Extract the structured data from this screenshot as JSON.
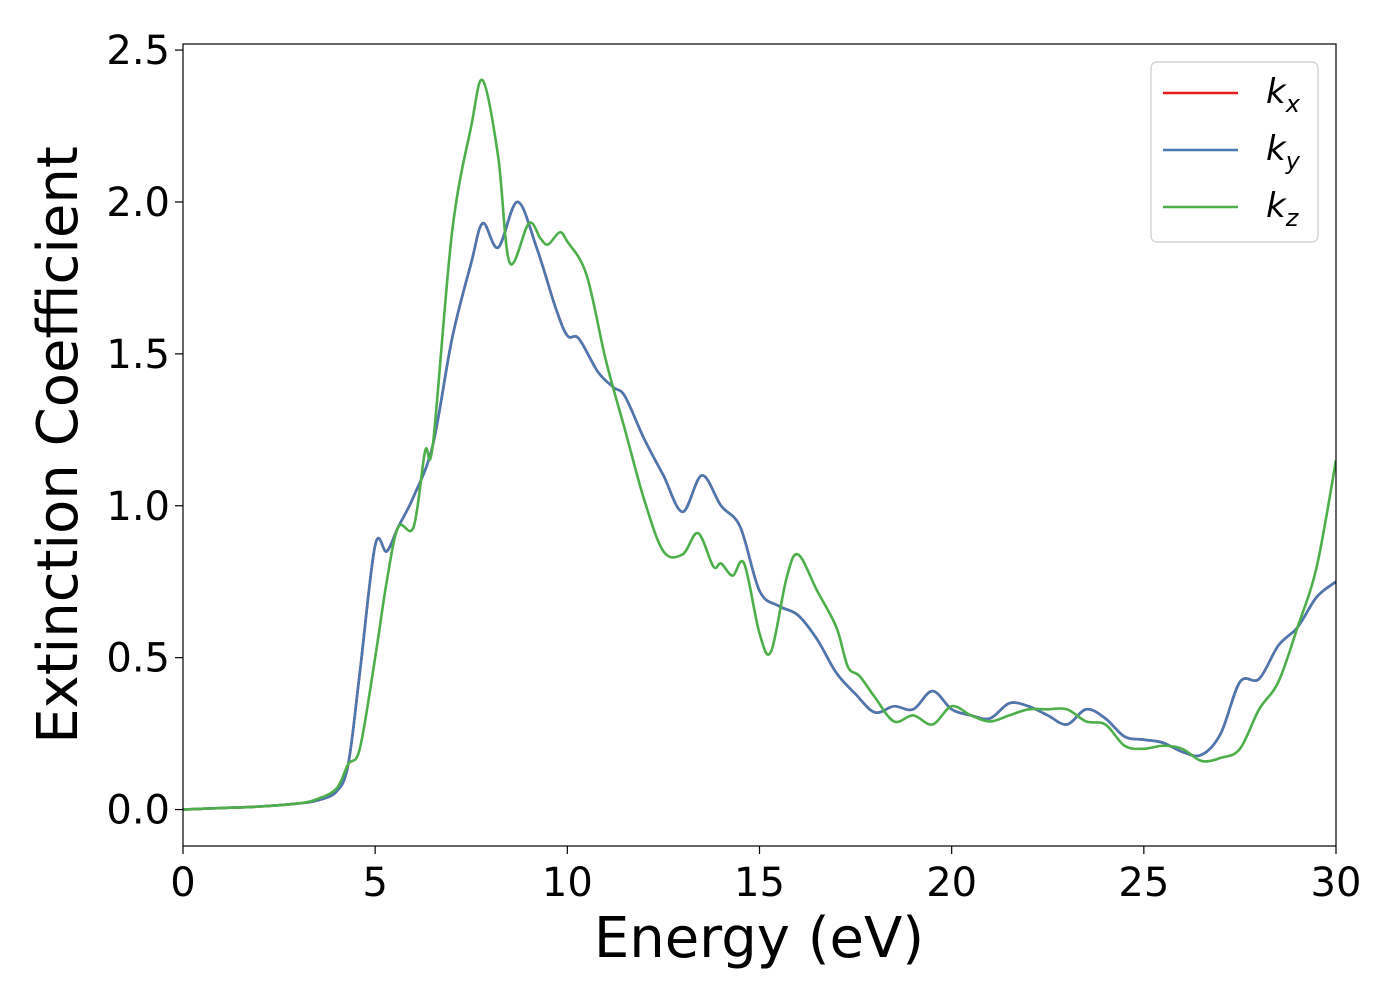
{
  "chart_data": {
    "type": "line",
    "xlabel": "Energy (eV)",
    "ylabel": "Extinction Coefficient",
    "xlim": [
      0,
      30
    ],
    "ylim": [
      -0.12,
      2.52
    ],
    "xticks": [
      "0",
      "5",
      "10",
      "15",
      "20",
      "25",
      "30"
    ],
    "yticks": [
      "0.0",
      "0.5",
      "1.0",
      "1.5",
      "2.0",
      "2.5"
    ],
    "grid": false,
    "legend_position": "top-right",
    "series": [
      {
        "name": "k_x",
        "label_base": "k",
        "label_sub": "x",
        "color": "#e41a1c",
        "x": [
          0,
          1,
          2,
          3,
          3.5,
          4.0,
          4.3,
          4.6,
          5.0,
          5.3,
          5.6,
          6.0,
          6.5,
          7.0,
          7.5,
          7.8,
          8.2,
          8.7,
          9.2,
          9.7,
          10.0,
          10.3,
          10.8,
          11.2,
          11.5,
          12.0,
          12.5,
          13.0,
          13.5,
          14.0,
          14.5,
          15.0,
          15.5,
          16.0,
          16.5,
          17.0,
          17.5,
          18.0,
          18.5,
          19.0,
          19.5,
          20.0,
          20.5,
          21.0,
          21.5,
          22.0,
          22.5,
          23.0,
          23.5,
          24.0,
          24.5,
          25.0,
          25.5,
          26.0,
          26.5,
          27.0,
          27.5,
          28.0,
          28.5,
          29.0,
          29.5,
          30.0
        ],
        "y": [
          0.0,
          0.005,
          0.01,
          0.02,
          0.03,
          0.06,
          0.15,
          0.45,
          0.87,
          0.85,
          0.93,
          1.03,
          1.2,
          1.55,
          1.8,
          1.93,
          1.85,
          2.0,
          1.85,
          1.65,
          1.56,
          1.55,
          1.44,
          1.39,
          1.36,
          1.22,
          1.1,
          0.98,
          1.1,
          1.0,
          0.93,
          0.72,
          0.67,
          0.64,
          0.56,
          0.45,
          0.38,
          0.32,
          0.34,
          0.33,
          0.39,
          0.33,
          0.31,
          0.3,
          0.35,
          0.34,
          0.31,
          0.28,
          0.33,
          0.3,
          0.24,
          0.23,
          0.22,
          0.19,
          0.18,
          0.25,
          0.42,
          0.43,
          0.54,
          0.6,
          0.7,
          0.75
        ]
      },
      {
        "name": "k_y",
        "label_base": "k",
        "label_sub": "y",
        "color": "#4a78b0",
        "x": [
          0,
          1,
          2,
          3,
          3.5,
          4.0,
          4.3,
          4.6,
          5.0,
          5.3,
          5.6,
          6.0,
          6.5,
          7.0,
          7.5,
          7.8,
          8.2,
          8.7,
          9.2,
          9.7,
          10.0,
          10.3,
          10.8,
          11.2,
          11.5,
          12.0,
          12.5,
          13.0,
          13.5,
          14.0,
          14.5,
          15.0,
          15.5,
          16.0,
          16.5,
          17.0,
          17.5,
          18.0,
          18.5,
          19.0,
          19.5,
          20.0,
          20.5,
          21.0,
          21.5,
          22.0,
          22.5,
          23.0,
          23.5,
          24.0,
          24.5,
          25.0,
          25.5,
          26.0,
          26.5,
          27.0,
          27.5,
          28.0,
          28.5,
          29.0,
          29.5,
          30.0
        ],
        "y": [
          0.0,
          0.005,
          0.01,
          0.02,
          0.03,
          0.06,
          0.15,
          0.45,
          0.87,
          0.85,
          0.93,
          1.03,
          1.2,
          1.55,
          1.8,
          1.93,
          1.85,
          2.0,
          1.85,
          1.65,
          1.56,
          1.55,
          1.44,
          1.39,
          1.36,
          1.22,
          1.1,
          0.98,
          1.1,
          1.0,
          0.93,
          0.72,
          0.67,
          0.64,
          0.56,
          0.45,
          0.38,
          0.32,
          0.34,
          0.33,
          0.39,
          0.33,
          0.31,
          0.3,
          0.35,
          0.34,
          0.31,
          0.28,
          0.33,
          0.3,
          0.24,
          0.23,
          0.22,
          0.19,
          0.18,
          0.25,
          0.42,
          0.43,
          0.54,
          0.6,
          0.7,
          0.75
        ]
      },
      {
        "name": "k_z",
        "label_base": "k",
        "label_sub": "z",
        "color": "#4daf4a",
        "x": [
          0,
          1,
          2,
          3,
          3.5,
          4.0,
          4.3,
          4.6,
          5.0,
          5.3,
          5.6,
          6.0,
          6.3,
          6.5,
          7.0,
          7.5,
          7.8,
          8.2,
          8.5,
          9.0,
          9.3,
          9.5,
          9.8,
          10.0,
          10.5,
          11.0,
          11.5,
          12.0,
          12.5,
          13.0,
          13.4,
          13.8,
          14.0,
          14.3,
          14.6,
          15.0,
          15.3,
          15.7,
          16.0,
          16.5,
          17.0,
          17.3,
          17.6,
          18.0,
          18.5,
          19.0,
          19.5,
          20.0,
          20.5,
          21.0,
          21.5,
          22.0,
          22.5,
          23.0,
          23.5,
          24.0,
          24.5,
          25.0,
          25.5,
          26.0,
          26.5,
          27.0,
          27.5,
          28.0,
          28.5,
          29.0,
          29.5,
          30.0
        ],
        "y": [
          0.0,
          0.005,
          0.01,
          0.02,
          0.035,
          0.07,
          0.15,
          0.2,
          0.5,
          0.75,
          0.93,
          0.93,
          1.18,
          1.2,
          1.9,
          2.25,
          2.4,
          2.15,
          1.8,
          1.93,
          1.88,
          1.86,
          1.9,
          1.87,
          1.76,
          1.48,
          1.25,
          1.02,
          0.85,
          0.84,
          0.91,
          0.8,
          0.81,
          0.77,
          0.81,
          0.58,
          0.52,
          0.76,
          0.84,
          0.72,
          0.6,
          0.47,
          0.44,
          0.37,
          0.29,
          0.31,
          0.28,
          0.34,
          0.31,
          0.29,
          0.31,
          0.33,
          0.33,
          0.33,
          0.29,
          0.28,
          0.21,
          0.2,
          0.21,
          0.2,
          0.16,
          0.17,
          0.2,
          0.33,
          0.42,
          0.6,
          0.8,
          1.15
        ]
      }
    ]
  }
}
